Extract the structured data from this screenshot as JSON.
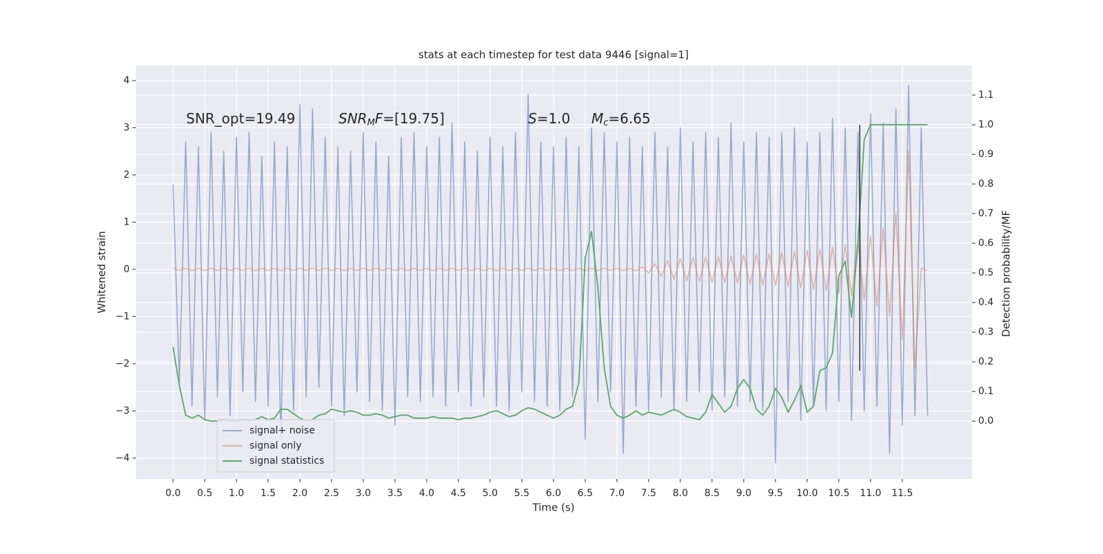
{
  "chart_data": {
    "type": "line",
    "title": "stats at each timestep for test data 9446 [signal=1]",
    "xlabel": "Time (s)",
    "ylabel": "Whitened strain",
    "y2label": "Detection probability/MF",
    "annotations": [
      [
        "SNR_opt=19.49"
      ],
      [
        "SNR",
        "M",
        "F",
        "=[19.75]"
      ],
      [
        "S",
        "=1.0"
      ],
      [
        "M",
        "c",
        "=6.65"
      ]
    ],
    "grid": true,
    "legend": "lower left",
    "xlim": [
      -0.587,
      12.6
    ],
    "ylim": [
      -4.44,
      4.32
    ],
    "y2lim": [
      -0.195,
      1.2
    ],
    "xticks": [
      {
        "value": 0,
        "label": "0.0"
      },
      {
        "value": 0.5,
        "label": "0.5"
      },
      {
        "value": 1,
        "label": "1.0"
      },
      {
        "value": 1.5,
        "label": "1.5"
      },
      {
        "value": 2,
        "label": "2.0"
      },
      {
        "value": 2.5,
        "label": "2.5"
      },
      {
        "value": 3,
        "label": "3.0"
      },
      {
        "value": 3.5,
        "label": "3.5"
      },
      {
        "value": 4,
        "label": "4.0"
      },
      {
        "value": 4.5,
        "label": "4.5"
      },
      {
        "value": 5,
        "label": "5.0"
      },
      {
        "value": 5.5,
        "label": "5.5"
      },
      {
        "value": 6,
        "label": "6.0"
      },
      {
        "value": 6.5,
        "label": "6.5"
      },
      {
        "value": 7,
        "label": "7.0"
      },
      {
        "value": 7.5,
        "label": "7.5"
      },
      {
        "value": 8,
        "label": "8.0"
      },
      {
        "value": 8.5,
        "label": "8.5"
      },
      {
        "value": 9,
        "label": "9.0"
      },
      {
        "value": 9.5,
        "label": "9.5"
      },
      {
        "value": 10,
        "label": "10.0"
      },
      {
        "value": 10.5,
        "label": "10.5"
      },
      {
        "value": 11,
        "label": "11.0"
      },
      {
        "value": 11.5,
        "label": "11.5"
      }
    ],
    "yticks": [
      {
        "value": -4,
        "label": "−4"
      },
      {
        "value": -3,
        "label": "−3"
      },
      {
        "value": -2,
        "label": "−2"
      },
      {
        "value": -1,
        "label": "−1"
      },
      0,
      1,
      2,
      3,
      4
    ],
    "y2ticks": [
      {
        "value": 0,
        "label": "0.0"
      },
      {
        "value": 0.1,
        "label": "0.1"
      },
      {
        "value": 0.2,
        "label": "0.2"
      },
      {
        "value": 0.3,
        "label": "0.3"
      },
      {
        "value": 0.4,
        "label": "0.4"
      },
      {
        "value": 0.5,
        "label": "0.5"
      },
      {
        "value": 0.6,
        "label": "0.6"
      },
      {
        "value": 0.7,
        "label": "0.7"
      },
      {
        "value": 0.8,
        "label": "0.8"
      },
      {
        "value": 0.9,
        "label": "0.9"
      },
      {
        "value": 1,
        "label": "1.0"
      },
      {
        "value": 1.1,
        "label": "1.1"
      }
    ],
    "x": [
      0,
      0.1,
      0.2,
      0.3,
      0.4,
      0.5,
      0.6,
      0.7,
      0.8,
      0.9,
      1,
      1.1,
      1.2,
      1.3,
      1.4,
      1.5,
      1.6,
      1.7,
      1.8,
      1.9,
      2,
      2.1,
      2.2,
      2.3,
      2.4,
      2.5,
      2.6,
      2.7,
      2.8,
      2.9,
      3,
      3.1,
      3.2,
      3.3,
      3.4,
      3.5,
      3.6,
      3.7,
      3.8,
      3.9,
      4,
      4.1,
      4.2,
      4.3,
      4.4,
      4.5,
      4.6,
      4.7,
      4.8,
      4.9,
      5,
      5.1,
      5.2,
      5.3,
      5.4,
      5.5,
      5.6,
      5.7,
      5.8,
      5.9,
      6,
      6.1,
      6.2,
      6.3,
      6.4,
      6.5,
      6.6,
      6.7,
      6.8,
      6.9,
      7,
      7.1,
      7.2,
      7.3,
      7.4,
      7.5,
      7.6,
      7.7,
      7.8,
      7.9,
      8,
      8.1,
      8.2,
      8.3,
      8.4,
      8.5,
      8.6,
      8.7,
      8.8,
      8.9,
      9,
      9.1,
      9.2,
      9.3,
      9.4,
      9.5,
      9.6,
      9.7,
      9.8,
      9.9,
      10,
      10.1,
      10.2,
      10.3,
      10.4,
      10.5,
      10.6,
      10.7,
      10.8,
      10.9,
      11,
      11.1,
      11.2,
      11.3,
      11.4,
      11.5,
      11.6,
      11.7,
      11.8,
      11.9
    ],
    "series": [
      {
        "name": "signal+ noise",
        "color": "#4c72b0",
        "values": [
          1.8,
          -2.4,
          2.7,
          -2.9,
          2.6,
          -3.2,
          2.9,
          -2.7,
          2.5,
          -3.1,
          2.8,
          -2.6,
          2.9,
          -2.8,
          2.4,
          -2.9,
          2.7,
          -3.6,
          2.6,
          -3.0,
          3.5,
          -2.7,
          3.4,
          -2.5,
          2.8,
          -2.9,
          2.6,
          -3.1,
          2.5,
          -2.6,
          2.9,
          -2.8,
          2.7,
          -3.0,
          2.4,
          -3.3,
          2.8,
          -2.7,
          2.9,
          -2.8,
          2.6,
          -2.7,
          2.8,
          -2.9,
          3.1,
          -2.6,
          2.7,
          -2.9,
          2.5,
          -2.7,
          2.8,
          -2.9,
          2.6,
          -3.0,
          2.9,
          -2.6,
          3.7,
          -2.8,
          2.7,
          -2.9,
          2.6,
          -3.0,
          2.8,
          -2.7,
          2.6,
          -3.6,
          3.0,
          -2.8,
          2.9,
          -2.6,
          2.7,
          -3.9,
          2.8,
          -2.9,
          2.6,
          -3.0,
          2.9,
          -2.7,
          2.6,
          -3.0,
          3.0,
          -2.8,
          2.7,
          -2.6,
          2.9,
          -3.0,
          2.8,
          -2.7,
          3.1,
          -2.9,
          2.7,
          -2.8,
          2.9,
          -3.0,
          2.8,
          -4.1,
          2.9,
          -2.8,
          3.0,
          -3.2,
          2.7,
          -2.9,
          2.9,
          -3.0,
          3.2,
          -2.8,
          3.0,
          -3.2,
          2.9,
          -3.0,
          3.3,
          -2.9,
          3.1,
          -3.9,
          3.4,
          -3.3,
          3.9,
          -3.1,
          3.0,
          -3.1
        ]
      },
      {
        "name": "signal only",
        "color": "#dd8452",
        "values": [
          0.02,
          -0.02,
          0.02,
          -0.02,
          0.02,
          -0.02,
          0.02,
          -0.02,
          0.02,
          -0.02,
          0.02,
          -0.02,
          0.02,
          -0.02,
          0.02,
          -0.02,
          0.02,
          -0.02,
          0.02,
          -0.02,
          0.02,
          -0.02,
          0.02,
          -0.02,
          0.02,
          -0.02,
          0.02,
          -0.02,
          0.02,
          -0.02,
          0.02,
          -0.02,
          0.02,
          -0.02,
          0.02,
          -0.02,
          0.02,
          -0.02,
          0.02,
          -0.02,
          0.02,
          -0.02,
          0.02,
          -0.02,
          0.02,
          -0.02,
          0.02,
          -0.02,
          0.02,
          -0.02,
          0.02,
          -0.02,
          0.02,
          -0.02,
          0.02,
          -0.02,
          0.02,
          -0.02,
          0.02,
          -0.02,
          0.02,
          -0.02,
          0.02,
          -0.02,
          0.02,
          -0.02,
          0.02,
          -0.02,
          0.02,
          -0.02,
          0.02,
          -0.02,
          0.02,
          -0.03,
          0.05,
          -0.08,
          0.12,
          -0.16,
          0.19,
          -0.21,
          0.23,
          -0.24,
          0.25,
          -0.25,
          0.26,
          -0.27,
          0.27,
          -0.28,
          0.29,
          -0.29,
          0.3,
          -0.31,
          0.32,
          -0.33,
          0.33,
          -0.34,
          0.35,
          -0.36,
          0.38,
          -0.39,
          0.4,
          -0.42,
          0.43,
          -0.45,
          0.47,
          -0.5,
          0.52,
          -0.56,
          0.6,
          -0.65,
          0.7,
          -0.78,
          0.88,
          -1.0,
          1.2,
          -1.5,
          2.5,
          -2.1,
          0.02,
          -0.02
        ]
      },
      {
        "name": "signal statistics",
        "color": "#55a868",
        "axis": "y2",
        "values": [
          0.25,
          0.12,
          0.02,
          0.01,
          0.02,
          0.005,
          0.0,
          0.0,
          0.005,
          0.0,
          0.0,
          0.005,
          0.0,
          0.005,
          0.015,
          0.005,
          0.01,
          0.04,
          0.04,
          0.025,
          0.01,
          0.0,
          0.005,
          0.02,
          0.025,
          0.04,
          0.035,
          0.03,
          0.035,
          0.03,
          0.02,
          0.02,
          0.025,
          0.02,
          0.01,
          0.015,
          0.02,
          0.02,
          0.01,
          0.01,
          0.01,
          0.015,
          0.01,
          0.01,
          0.01,
          0.005,
          0.01,
          0.01,
          0.015,
          0.02,
          0.03,
          0.035,
          0.025,
          0.015,
          0.02,
          0.035,
          0.045,
          0.04,
          0.03,
          0.02,
          0.01,
          0.02,
          0.04,
          0.05,
          0.13,
          0.55,
          0.64,
          0.45,
          0.18,
          0.05,
          0.02,
          0.01,
          0.02,
          0.035,
          0.02,
          0.03,
          0.025,
          0.02,
          0.03,
          0.04,
          0.03,
          0.015,
          0.01,
          0.005,
          0.03,
          0.09,
          0.06,
          0.03,
          0.05,
          0.11,
          0.14,
          0.11,
          0.04,
          0.02,
          0.05,
          0.11,
          0.08,
          0.03,
          0.07,
          0.12,
          0.03,
          0.05,
          0.17,
          0.18,
          0.23,
          0.49,
          0.54,
          0.35,
          0.6,
          0.95,
          1.0,
          1.0,
          1.0,
          1.0,
          1.0,
          1.0,
          1.0,
          1.0,
          1.0,
          1.0
        ]
      }
    ],
    "marker_line": {
      "x": 10.83,
      "y2": [
        0.17,
        1.0
      ],
      "color": "#333333"
    }
  }
}
